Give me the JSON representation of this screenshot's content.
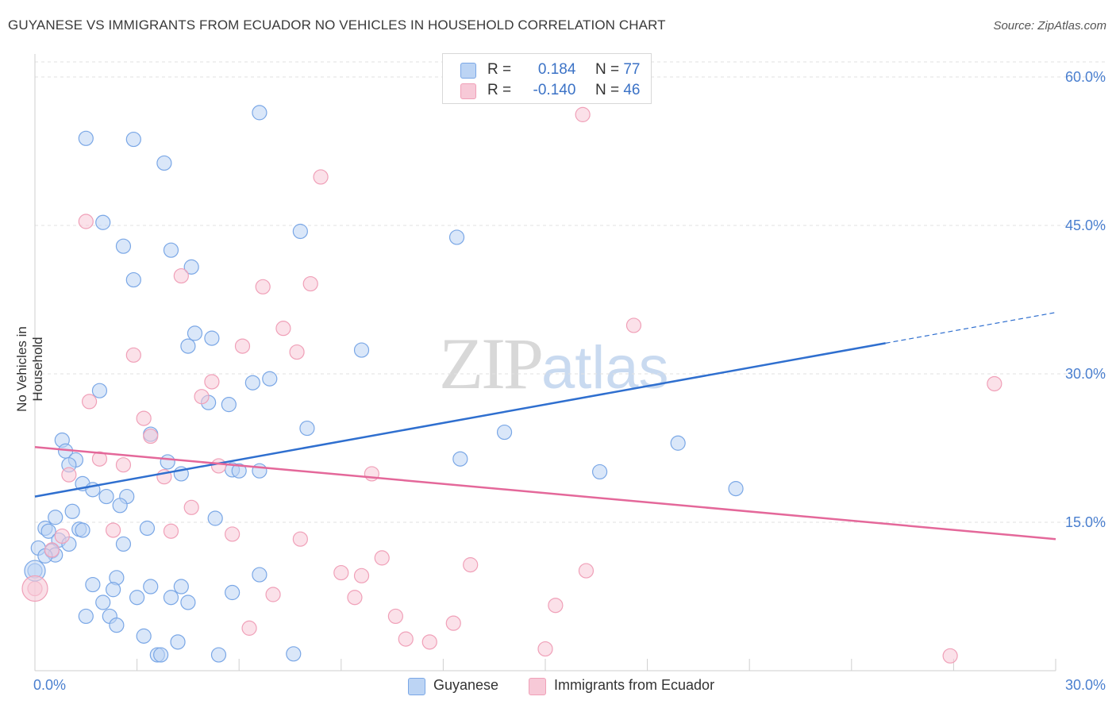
{
  "header": {
    "title": "GUYANESE VS IMMIGRANTS FROM ECUADOR NO VEHICLES IN HOUSEHOLD CORRELATION CHART",
    "source": "Source: ZipAtlas.com"
  },
  "watermark": {
    "zip": "ZIP",
    "atlas": "atlas"
  },
  "legend_top": {
    "rows": [
      {
        "r_label": "R =",
        "r_value": "0.184",
        "n_label": "N =",
        "n_value": "77"
      },
      {
        "r_label": "R =",
        "r_value": "-0.140",
        "n_label": "N =",
        "n_value": "46"
      }
    ]
  },
  "chart_data": {
    "type": "scatter",
    "title": "GUYANESE VS IMMIGRANTS FROM ECUADOR NO VEHICLES IN HOUSEHOLD CORRELATION CHART",
    "xlabel": "",
    "ylabel": "No Vehicles in Household",
    "xlim": [
      0,
      30
    ],
    "ylim": [
      0,
      60
    ],
    "x_tick_labels": [
      "0.0%",
      "30.0%"
    ],
    "y_tick_values": [
      15,
      30,
      45,
      60
    ],
    "y_tick_labels": [
      "15.0%",
      "30.0%",
      "45.0%",
      "60.0%"
    ],
    "grid": true,
    "legend_position": "bottom",
    "series": [
      {
        "name": "Guyanese",
        "color": "#7aa7e6",
        "fill": "#bcd4f4",
        "trend_color": "#2f6fcf",
        "r": 0.184,
        "n": 77,
        "trend": {
          "x0": 0,
          "y0": 17.6,
          "x1": 25.0,
          "y1": 33.1,
          "dashed_to_x": 30,
          "dashed_to_y": 36.2
        },
        "points": [
          [
            1.5,
            53.8
          ],
          [
            2.9,
            53.7
          ],
          [
            6.6,
            56.4
          ],
          [
            3.8,
            51.3
          ],
          [
            2.0,
            45.3
          ],
          [
            7.8,
            44.4
          ],
          [
            12.4,
            43.8
          ],
          [
            2.6,
            42.9
          ],
          [
            4.0,
            42.5
          ],
          [
            4.6,
            40.8
          ],
          [
            2.9,
            39.5
          ],
          [
            4.7,
            34.1
          ],
          [
            5.2,
            33.6
          ],
          [
            4.5,
            32.8
          ],
          [
            9.6,
            32.4
          ],
          [
            6.9,
            29.5
          ],
          [
            6.4,
            29.1
          ],
          [
            5.1,
            27.1
          ],
          [
            5.7,
            26.9
          ],
          [
            1.9,
            28.3
          ],
          [
            8.0,
            24.5
          ],
          [
            13.8,
            24.1
          ],
          [
            3.4,
            23.9
          ],
          [
            18.9,
            23.0
          ],
          [
            0.8,
            23.3
          ],
          [
            0.9,
            22.2
          ],
          [
            1.2,
            21.3
          ],
          [
            3.9,
            21.1
          ],
          [
            1.0,
            20.8
          ],
          [
            12.5,
            21.4
          ],
          [
            5.8,
            20.3
          ],
          [
            6.0,
            20.2
          ],
          [
            6.6,
            20.2
          ],
          [
            4.3,
            19.9
          ],
          [
            16.6,
            20.1
          ],
          [
            1.4,
            18.9
          ],
          [
            1.7,
            18.3
          ],
          [
            20.6,
            18.4
          ],
          [
            2.1,
            17.6
          ],
          [
            2.7,
            17.6
          ],
          [
            2.5,
            16.7
          ],
          [
            1.1,
            16.1
          ],
          [
            0.6,
            15.5
          ],
          [
            5.3,
            15.4
          ],
          [
            0.3,
            14.4
          ],
          [
            1.3,
            14.3
          ],
          [
            0.4,
            14.1
          ],
          [
            1.4,
            14.2
          ],
          [
            3.3,
            14.4
          ],
          [
            0.7,
            13.2
          ],
          [
            1.0,
            12.8
          ],
          [
            2.6,
            12.8
          ],
          [
            0.1,
            12.4
          ],
          [
            0.5,
            12.1
          ],
          [
            0.6,
            11.7
          ],
          [
            0.3,
            11.6
          ],
          [
            0.0,
            10.1
          ],
          [
            2.4,
            9.4
          ],
          [
            6.6,
            9.7
          ],
          [
            1.7,
            8.7
          ],
          [
            3.4,
            8.5
          ],
          [
            4.3,
            8.5
          ],
          [
            2.3,
            8.2
          ],
          [
            5.8,
            7.9
          ],
          [
            3.0,
            7.4
          ],
          [
            4.0,
            7.4
          ],
          [
            2.0,
            6.9
          ],
          [
            4.5,
            6.9
          ],
          [
            1.5,
            5.5
          ],
          [
            2.2,
            5.5
          ],
          [
            2.4,
            4.6
          ],
          [
            3.2,
            3.5
          ],
          [
            4.2,
            2.9
          ],
          [
            3.6,
            1.6
          ],
          [
            3.7,
            1.6
          ],
          [
            5.4,
            1.6
          ],
          [
            7.6,
            1.7
          ]
        ]
      },
      {
        "name": "Immigrants from Ecuador",
        "color": "#f0a0b8",
        "fill": "#f7c9d7",
        "trend_color": "#e4689a",
        "r": -0.14,
        "n": 46,
        "trend": {
          "x0": 0,
          "y0": 22.6,
          "x1": 30,
          "y1": 13.3
        },
        "points": [
          [
            16.1,
            56.2
          ],
          [
            8.4,
            49.9
          ],
          [
            1.5,
            45.4
          ],
          [
            4.3,
            39.9
          ],
          [
            6.7,
            38.8
          ],
          [
            8.1,
            39.1
          ],
          [
            17.6,
            34.9
          ],
          [
            7.3,
            34.6
          ],
          [
            6.1,
            32.8
          ],
          [
            7.7,
            32.2
          ],
          [
            2.9,
            31.9
          ],
          [
            5.2,
            29.2
          ],
          [
            28.2,
            29.0
          ],
          [
            4.9,
            27.7
          ],
          [
            1.6,
            27.2
          ],
          [
            3.2,
            25.5
          ],
          [
            3.4,
            23.7
          ],
          [
            1.9,
            21.4
          ],
          [
            2.6,
            20.8
          ],
          [
            5.4,
            20.7
          ],
          [
            9.9,
            19.9
          ],
          [
            1.0,
            19.8
          ],
          [
            3.8,
            19.6
          ],
          [
            4.6,
            16.5
          ],
          [
            2.3,
            14.2
          ],
          [
            4.0,
            14.1
          ],
          [
            5.8,
            13.8
          ],
          [
            0.8,
            13.6
          ],
          [
            7.8,
            13.3
          ],
          [
            0.5,
            12.2
          ],
          [
            10.2,
            11.4
          ],
          [
            12.8,
            10.7
          ],
          [
            9.0,
            9.9
          ],
          [
            16.2,
            10.1
          ],
          [
            9.6,
            9.6
          ],
          [
            0.0,
            8.3
          ],
          [
            7.0,
            7.7
          ],
          [
            9.4,
            7.4
          ],
          [
            15.3,
            6.6
          ],
          [
            10.6,
            5.5
          ],
          [
            6.3,
            4.3
          ],
          [
            12.3,
            4.8
          ],
          [
            10.9,
            3.2
          ],
          [
            11.6,
            2.9
          ],
          [
            15.0,
            2.2
          ],
          [
            26.9,
            1.5
          ]
        ]
      }
    ]
  }
}
